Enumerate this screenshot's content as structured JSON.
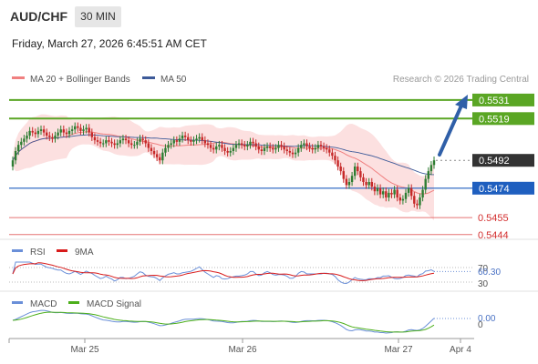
{
  "header": {
    "symbol": "AUD/CHF",
    "timeframe": "30 MIN",
    "datetime": "Friday, March 27, 2026 6:45:51 AM CET"
  },
  "legend": {
    "ma20": "MA 20 + Bollinger Bands",
    "ma50": "MA 50",
    "credit": "Research © 2026 Trading Central",
    "rsi": "RSI",
    "rsi_ma": "9MA",
    "macd": "MACD",
    "macd_signal": "MACD Signal"
  },
  "colors": {
    "up": "#2e7d32",
    "down": "#c62828",
    "ma20": "#f08080",
    "ma50": "#3d5a99",
    "band": "#fbd5d5",
    "resistance": "#5aa624",
    "pivot": "#1f5fbf",
    "support": "#e57373",
    "current": "#333333",
    "arrow": "#2f5fa8"
  },
  "chart_data": [
    {
      "type": "candlestick",
      "name": "price",
      "ylim": [
        0.5438,
        0.5538
      ],
      "current_price": 0.5492,
      "levels": [
        {
          "label": "0.5531",
          "value": 0.5531,
          "kind": "resistance"
        },
        {
          "label": "0.5519",
          "value": 0.5519,
          "kind": "resistance"
        },
        {
          "label": "0.5492",
          "value": 0.5492,
          "kind": "current"
        },
        {
          "label": "0.5474",
          "value": 0.5474,
          "kind": "pivot"
        },
        {
          "label": "0.5455",
          "value": 0.5455,
          "kind": "support"
        },
        {
          "label": "0.5444",
          "value": 0.5444,
          "kind": "support"
        }
      ],
      "close": [
        0.5492,
        0.5498,
        0.5502,
        0.5504,
        0.5506,
        0.5508,
        0.5511,
        0.551,
        0.5509,
        0.5511,
        0.5512,
        0.551,
        0.5508,
        0.5507,
        0.5506,
        0.5508,
        0.551,
        0.5512,
        0.551,
        0.5509,
        0.5511,
        0.5512,
        0.5514,
        0.5513,
        0.5511,
        0.5512,
        0.5513,
        0.551,
        0.5507,
        0.5505,
        0.5504,
        0.5503,
        0.5503,
        0.5505,
        0.5504,
        0.5503,
        0.5502,
        0.5503,
        0.5505,
        0.5506,
        0.5505,
        0.5503,
        0.5502,
        0.5502,
        0.5504,
        0.5506,
        0.5505,
        0.5503,
        0.55,
        0.5498,
        0.5496,
        0.5494,
        0.5492,
        0.5497,
        0.55,
        0.5502,
        0.5503,
        0.5505,
        0.5504,
        0.5506,
        0.5508,
        0.5507,
        0.5505,
        0.5504,
        0.5505,
        0.5506,
        0.5507,
        0.5505,
        0.5503,
        0.5502,
        0.55,
        0.5499,
        0.5501,
        0.5502,
        0.55,
        0.5498,
        0.5497,
        0.5498,
        0.55,
        0.5502,
        0.5503,
        0.5502,
        0.5501,
        0.5502,
        0.5504,
        0.5503,
        0.5501,
        0.5499,
        0.5498,
        0.55,
        0.5501,
        0.55,
        0.5499,
        0.55,
        0.5502,
        0.5501,
        0.5499,
        0.5498,
        0.5497,
        0.5496,
        0.5497,
        0.55,
        0.5502,
        0.5503,
        0.5501,
        0.55,
        0.5499,
        0.55,
        0.5502,
        0.5501,
        0.55,
        0.5499,
        0.5497,
        0.5495,
        0.5492,
        0.5488,
        0.5485,
        0.548,
        0.5476,
        0.5478,
        0.5482,
        0.5488,
        0.5485,
        0.5481,
        0.5478,
        0.5476,
        0.5478,
        0.5475,
        0.5472,
        0.5474,
        0.547,
        0.5472,
        0.5468,
        0.5471,
        0.547,
        0.5473,
        0.5468,
        0.5466,
        0.5467,
        0.5471,
        0.5474,
        0.5469,
        0.5464,
        0.5463,
        0.5468,
        0.5473,
        0.548,
        0.5485,
        0.5489,
        0.5492
      ]
    },
    {
      "type": "line",
      "name": "RSI",
      "ylim": [
        0,
        100
      ],
      "reference_levels": [
        70,
        30
      ],
      "last_value": 60.3,
      "axis_labels": [
        "70",
        "60.30",
        "30"
      ]
    },
    {
      "type": "line",
      "name": "MACD",
      "last_value": 0.0,
      "axis_labels": [
        "0.00",
        "0"
      ]
    },
    {
      "type": "axis",
      "x_ticks": [
        "Mar 25",
        "Mar 26",
        "Mar 27",
        "Apr 4"
      ]
    }
  ]
}
